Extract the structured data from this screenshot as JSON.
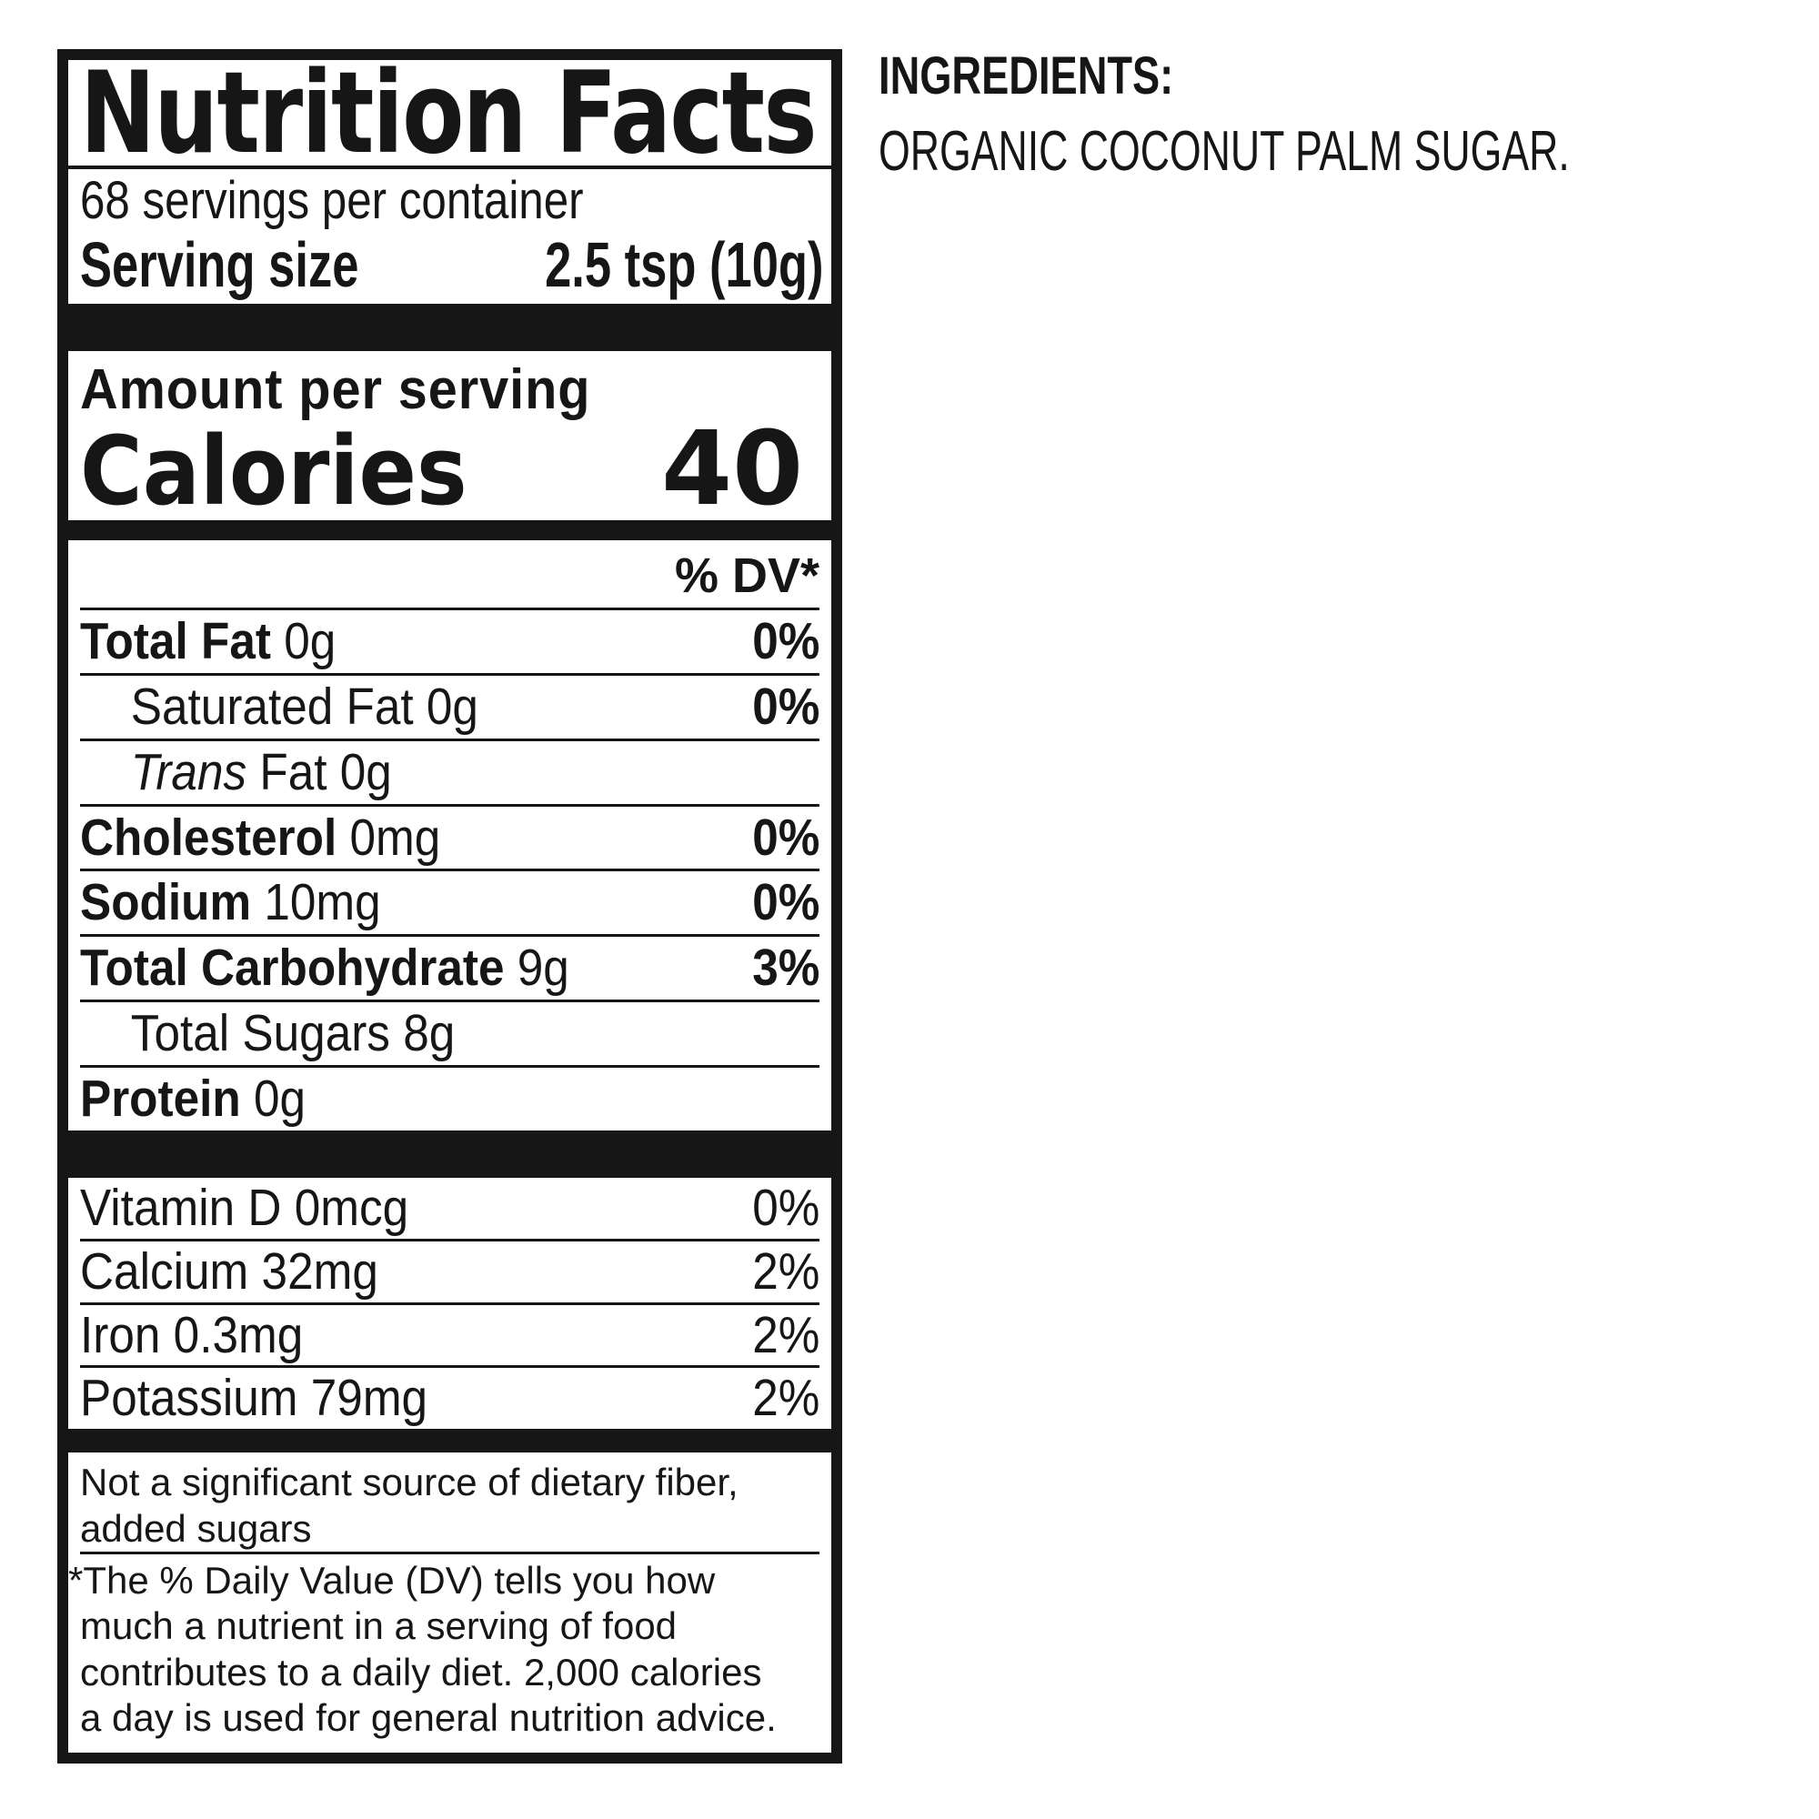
{
  "colors": {
    "ink": "#161616",
    "background": "#ffffff"
  },
  "nutrition_label": {
    "title": "Nutrition Facts",
    "servings_per_container": "68 servings per container",
    "serving_size": {
      "label": "Serving size",
      "value": "2.5 tsp (10g)"
    },
    "amount_per_serving": "Amount per serving",
    "calories": {
      "label": "Calories",
      "value": "40"
    },
    "daily_value_header": "% DV*",
    "rows": [
      {
        "name": "Total Fat",
        "amount": "0g",
        "dv": "0%"
      },
      {
        "name": "Saturated Fat",
        "amount": "0g",
        "dv": "0%"
      },
      {
        "name_italic": "Trans",
        "name": "Fat",
        "amount": "0g",
        "dv": ""
      },
      {
        "name": "Cholesterol",
        "amount": "0mg",
        "dv": "0%"
      },
      {
        "name": "Sodium",
        "amount": "10mg",
        "dv": "0%"
      },
      {
        "name": "Total Carbohydrate",
        "amount": "9g",
        "dv": "3%"
      },
      {
        "name": "Total Sugars",
        "amount": "8g",
        "dv": ""
      },
      {
        "name": "Protein",
        "amount": "0g",
        "dv": ""
      }
    ],
    "micronutrient_rows": [
      {
        "name": "Vitamin D",
        "amount": "0mcg",
        "dv": "0%"
      },
      {
        "name": "Calcium",
        "amount": "32mg",
        "dv": "2%"
      },
      {
        "name": "Iron",
        "amount": "0.3mg",
        "dv": "2%"
      },
      {
        "name": "Potassium",
        "amount": "79mg",
        "dv": "2%"
      }
    ],
    "not_significant_note": "Not a significant source of dietary fiber, added sugars",
    "not_significant_note_lines": [
      "Not a significant source of dietary fiber,",
      "added sugars"
    ],
    "daily_value_footnote": "*The % Daily Value (DV) tells you how much a nutrient in a serving of food contributes to a daily diet. 2,000 calories a day is used for general nutrition advice.",
    "daily_value_footnote_lines": [
      "*The % Daily Value (DV) tells you how",
      "much a nutrient in a serving of food",
      "contributes to a daily diet. 2,000 calories",
      "a day is used for general nutrition advice."
    ]
  },
  "ingredients": {
    "heading": "INGREDIENTS:",
    "text": "ORGANIC COCONUT PALM SUGAR."
  }
}
